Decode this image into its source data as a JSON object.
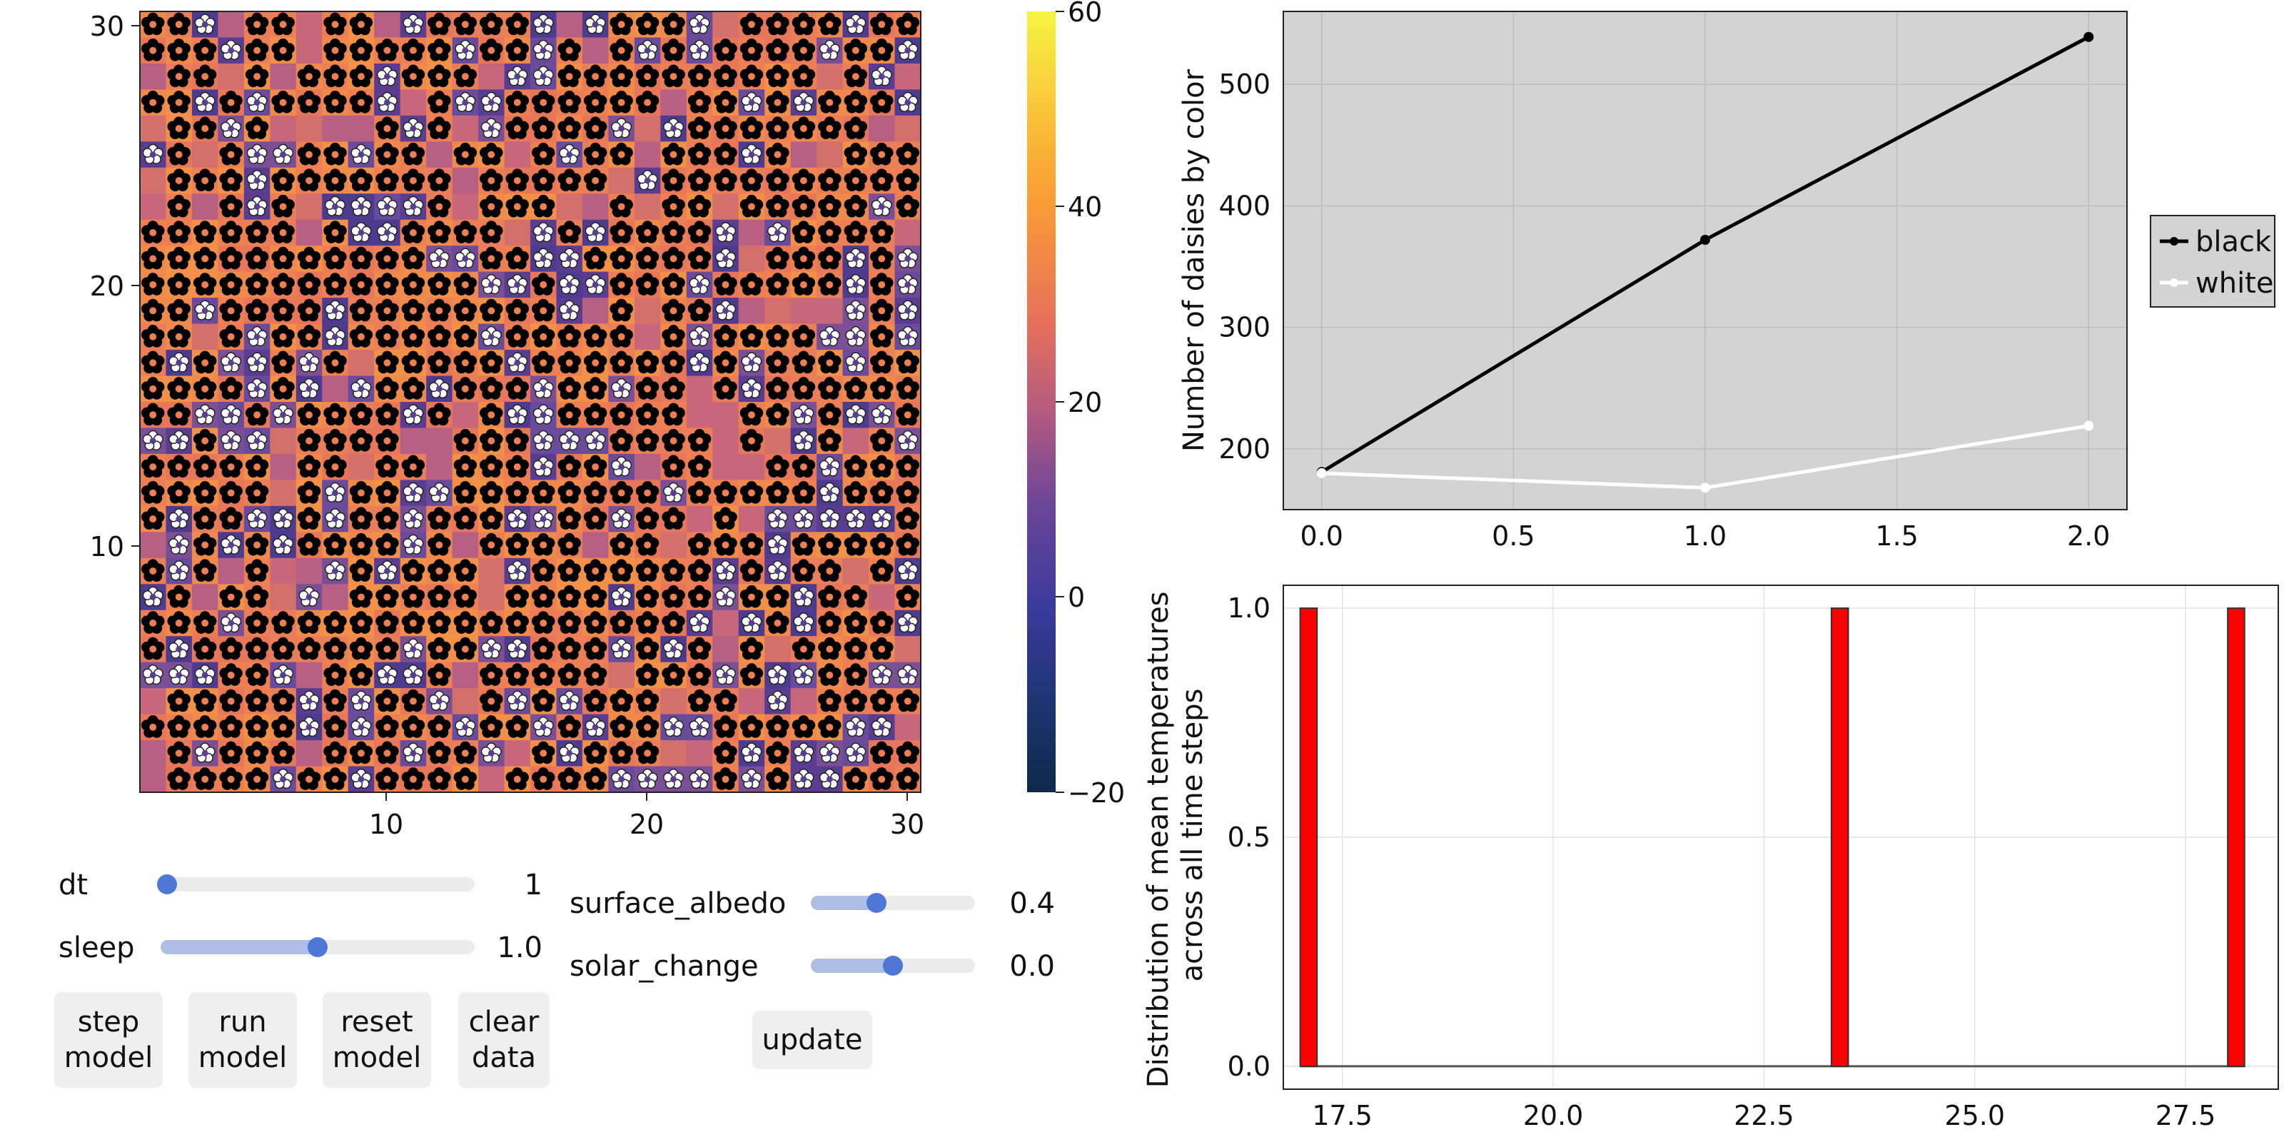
{
  "heatmap": {
    "x_ticks": [
      "10",
      "20",
      "30"
    ],
    "y_ticks": [
      "30",
      "20",
      "10"
    ],
    "colorbar_ticks": [
      "60",
      "40",
      "20",
      "0",
      "−20"
    ],
    "colors": {
      "black_daisy": "#000000",
      "white_daisy": "#ffffff",
      "patch_warm": "#ee7f52",
      "patch_cool": "#5a3d91",
      "cb_top": "#f5f542",
      "cb_bottom": "#0c2a4a"
    }
  },
  "controls": {
    "dt": {
      "label": "dt",
      "value": "1",
      "fraction": 0.02
    },
    "sleep": {
      "label": "sleep",
      "value": "1.0",
      "fraction": 0.5
    },
    "surface_albedo": {
      "label": "surface_albedo",
      "value": "0.4",
      "fraction": 0.4
    },
    "solar_change": {
      "label": "solar_change",
      "value": "0.0",
      "fraction": 0.5
    },
    "buttons": {
      "step": "step\nmodel",
      "run": "run\nmodel",
      "reset": "reset\nmodel",
      "clear": "clear\ndata",
      "update": "update"
    }
  },
  "chart_data": [
    {
      "type": "line",
      "ylabel": "Number of daisies by color",
      "xlim": [
        -0.1,
        2.1
      ],
      "ylim": [
        150,
        560
      ],
      "x_ticks": [
        "0.0",
        "0.5",
        "1.0",
        "1.5",
        "2.0"
      ],
      "y_ticks": [
        "200",
        "300",
        "400",
        "500"
      ],
      "legend": "right",
      "grid": true,
      "background": "#d3d3d3",
      "series": [
        {
          "name": "black",
          "color": "#000000",
          "x": [
            0,
            1,
            2
          ],
          "y": [
            181,
            372,
            539
          ]
        },
        {
          "name": "white",
          "color": "#ffffff",
          "x": [
            0,
            1,
            2
          ],
          "y": [
            180,
            168,
            219
          ]
        }
      ]
    },
    {
      "type": "bar",
      "ylabel": "Distribution of mean temperatures\nacross all time steps",
      "xlim": [
        16.8,
        28.6
      ],
      "ylim": [
        -0.05,
        1.05
      ],
      "x_ticks": [
        "17.5",
        "20.0",
        "22.5",
        "25.0",
        "27.5"
      ],
      "y_ticks": [
        "0.0",
        "0.5",
        "1.0"
      ],
      "grid": true,
      "bar_color": "#ff0000",
      "bins": [
        {
          "x_start": 17.0,
          "x_end": 17.2,
          "value": 1
        },
        {
          "x_start": 23.3,
          "x_end": 23.5,
          "value": 1
        },
        {
          "x_start": 28.0,
          "x_end": 28.2,
          "value": 1
        }
      ]
    }
  ]
}
